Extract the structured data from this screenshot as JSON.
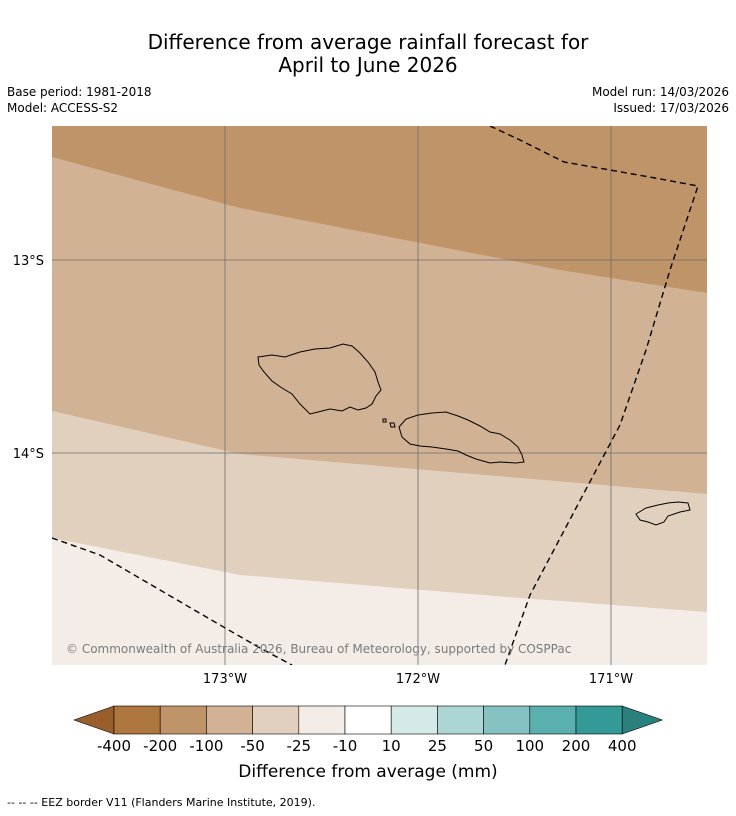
{
  "title": {
    "line1": "Difference from average rainfall forecast for",
    "line2": "April to June 2026"
  },
  "meta": {
    "base_period": "Base period: 1981-2018",
    "model": "Model: ACCESS-S2",
    "model_run": "Model run: 14/03/2026",
    "issued": "Issued: 17/03/2026"
  },
  "map": {
    "lat_labels": [
      "13°S",
      "14°S"
    ],
    "lon_labels": [
      "173°W",
      "172°W",
      "171°W"
    ],
    "copyright": "© Commonwealth of Australia 2026, Bureau of Meteorology, supported by COSPPac",
    "colors": {
      "band_-200": "#c09469",
      "band_-100": "#d2b294",
      "band_-50": "#e2d0bf",
      "band_-25": "#f4ede7",
      "coast": "#000000",
      "grid": "#6b6b6b"
    }
  },
  "colorbar": {
    "title": "Difference from average (mm)",
    "tick_labels": [
      "-400",
      "-200",
      "-100",
      "-50",
      "-25",
      "-10",
      "10",
      "25",
      "50",
      "100",
      "200",
      "400"
    ],
    "colors": [
      "#995f2b",
      "#ae773f",
      "#c09469",
      "#d2b294",
      "#e2d0bf",
      "#f4ede7",
      "#ffffff",
      "#d3eae8",
      "#acd6d4",
      "#85c2c1",
      "#5ab0ae",
      "#339a98",
      "#2b7f7d"
    ]
  },
  "footer": {
    "eez_note": "--  --  -- EEZ border V11 (Flanders Marine Institute, 2019)."
  }
}
